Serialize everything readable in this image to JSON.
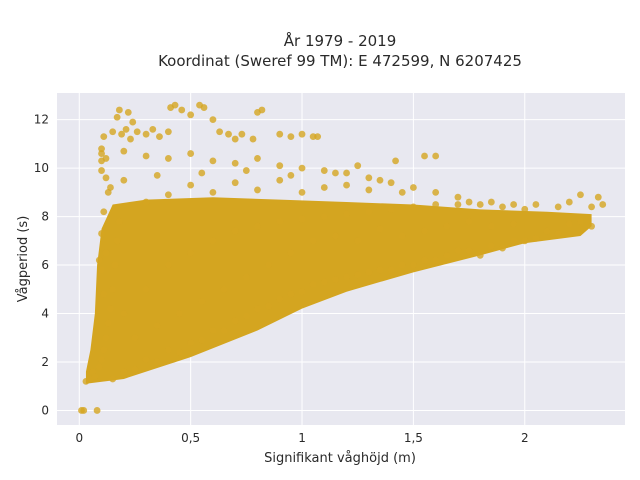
{
  "chart_data": {
    "type": "scatter",
    "title_line1": "År 1979 - 2019",
    "title_line2": "Koordinat (Sweref 99 TM): E 472599, N 6207425",
    "xlabel": "Signifikant våghöjd (m)",
    "ylabel": "Vågperiod (s)",
    "xlim": [
      -0.1,
      2.45
    ],
    "ylim": [
      -0.6,
      13.1
    ],
    "xticks": [
      {
        "value": 0,
        "label": "0"
      },
      {
        "value": 0.5,
        "label": "0,5"
      },
      {
        "value": 1,
        "label": "1"
      },
      {
        "value": 1.5,
        "label": "1,5"
      },
      {
        "value": 2,
        "label": "2"
      }
    ],
    "yticks": [
      {
        "value": 0,
        "label": "0"
      },
      {
        "value": 2,
        "label": "2"
      },
      {
        "value": 4,
        "label": "4"
      },
      {
        "value": 6,
        "label": "6"
      },
      {
        "value": 8,
        "label": "8"
      },
      {
        "value": 10,
        "label": "10"
      },
      {
        "value": 12,
        "label": "12"
      }
    ],
    "grid": true,
    "marker_color": "#D4A520",
    "plot_background": "#E8E8F0",
    "points": [
      [
        0.01,
        0.0
      ],
      [
        0.02,
        0.0
      ],
      [
        0.08,
        0.0
      ],
      [
        0.03,
        1.2
      ],
      [
        0.05,
        1.3
      ],
      [
        0.06,
        1.6
      ],
      [
        0.07,
        1.4
      ],
      [
        0.09,
        1.8
      ],
      [
        0.1,
        2.1
      ],
      [
        0.11,
        2.5
      ],
      [
        0.12,
        3.0
      ],
      [
        0.13,
        3.6
      ],
      [
        0.14,
        4.2
      ],
      [
        0.15,
        5.0
      ],
      [
        0.16,
        6.0
      ],
      [
        0.17,
        7.0
      ],
      [
        0.18,
        7.8
      ],
      [
        0.12,
        6.5
      ],
      [
        0.1,
        5.8
      ],
      [
        0.11,
        4.8
      ],
      [
        0.09,
        6.2
      ],
      [
        0.1,
        7.3
      ],
      [
        0.11,
        8.2
      ],
      [
        0.13,
        9.0
      ],
      [
        0.1,
        9.9
      ],
      [
        0.12,
        9.6
      ],
      [
        0.14,
        9.2
      ],
      [
        0.1,
        10.3
      ],
      [
        0.11,
        11.3
      ],
      [
        0.15,
        11.5
      ],
      [
        0.19,
        11.4
      ],
      [
        0.21,
        11.6
      ],
      [
        0.23,
        11.2
      ],
      [
        0.17,
        12.1
      ],
      [
        0.18,
        12.4
      ],
      [
        0.22,
        12.3
      ],
      [
        0.24,
        11.9
      ],
      [
        0.26,
        11.5
      ],
      [
        0.3,
        11.4
      ],
      [
        0.33,
        11.6
      ],
      [
        0.36,
        11.3
      ],
      [
        0.4,
        11.5
      ],
      [
        0.41,
        12.5
      ],
      [
        0.43,
        12.6
      ],
      [
        0.46,
        12.4
      ],
      [
        0.5,
        12.2
      ],
      [
        0.54,
        12.6
      ],
      [
        0.56,
        12.5
      ],
      [
        0.6,
        12.0
      ],
      [
        0.63,
        11.5
      ],
      [
        0.67,
        11.4
      ],
      [
        0.7,
        11.2
      ],
      [
        0.73,
        11.4
      ],
      [
        0.78,
        11.2
      ],
      [
        0.8,
        12.3
      ],
      [
        0.82,
        12.4
      ],
      [
        0.9,
        11.4
      ],
      [
        0.95,
        11.3
      ],
      [
        1.0,
        11.4
      ],
      [
        1.05,
        11.3
      ],
      [
        1.07,
        11.3
      ],
      [
        0.1,
        10.8
      ],
      [
        0.1,
        10.6
      ],
      [
        0.12,
        10.4
      ],
      [
        0.2,
        10.7
      ],
      [
        0.3,
        10.5
      ],
      [
        0.4,
        10.4
      ],
      [
        0.5,
        10.6
      ],
      [
        0.6,
        10.3
      ],
      [
        0.7,
        10.2
      ],
      [
        0.8,
        10.4
      ],
      [
        0.9,
        10.1
      ],
      [
        1.0,
        10.0
      ],
      [
        1.1,
        9.9
      ],
      [
        1.2,
        9.8
      ],
      [
        1.3,
        9.6
      ],
      [
        1.4,
        9.4
      ],
      [
        1.5,
        9.2
      ],
      [
        1.6,
        9.0
      ],
      [
        1.7,
        8.8
      ],
      [
        1.55,
        10.5
      ],
      [
        1.6,
        10.5
      ],
      [
        1.42,
        10.3
      ],
      [
        1.25,
        10.1
      ],
      [
        1.75,
        8.6
      ],
      [
        1.85,
        8.6
      ],
      [
        1.95,
        8.5
      ],
      [
        2.05,
        8.5
      ],
      [
        2.15,
        8.4
      ],
      [
        2.2,
        8.6
      ],
      [
        2.25,
        8.9
      ],
      [
        2.3,
        8.4
      ],
      [
        2.33,
        8.8
      ],
      [
        2.35,
        8.5
      ],
      [
        2.1,
        7.4
      ],
      [
        2.2,
        7.7
      ],
      [
        2.25,
        7.8
      ],
      [
        2.3,
        7.6
      ],
      [
        2.0,
        7.0
      ],
      [
        1.9,
        6.7
      ],
      [
        1.8,
        6.4
      ],
      [
        1.7,
        6.6
      ],
      [
        1.6,
        6.2
      ],
      [
        1.5,
        6.0
      ],
      [
        1.4,
        5.8
      ],
      [
        1.3,
        5.7
      ],
      [
        1.2,
        5.5
      ],
      [
        1.1,
        5.3
      ],
      [
        1.0,
        4.9
      ],
      [
        0.9,
        4.6
      ],
      [
        0.8,
        4.2
      ],
      [
        0.7,
        3.7
      ],
      [
        0.6,
        3.3
      ],
      [
        0.5,
        2.8
      ],
      [
        0.4,
        2.5
      ],
      [
        0.3,
        2.1
      ],
      [
        0.2,
        1.6
      ],
      [
        0.15,
        1.3
      ],
      [
        0.25,
        1.7
      ],
      [
        0.35,
        2.0
      ],
      [
        0.45,
        2.4
      ],
      [
        0.55,
        2.9
      ],
      [
        0.65,
        3.3
      ],
      [
        0.75,
        3.9
      ],
      [
        0.85,
        4.3
      ],
      [
        0.95,
        4.8
      ],
      [
        1.05,
        5.2
      ],
      [
        1.15,
        5.4
      ],
      [
        1.25,
        5.6
      ],
      [
        1.35,
        5.8
      ],
      [
        1.45,
        6.0
      ],
      [
        1.55,
        6.2
      ],
      [
        1.65,
        6.4
      ],
      [
        1.75,
        6.6
      ],
      [
        1.85,
        6.8
      ],
      [
        1.95,
        7.0
      ],
      [
        2.05,
        7.1
      ],
      [
        2.15,
        7.3
      ],
      [
        0.2,
        4.0
      ],
      [
        0.3,
        5.0
      ],
      [
        0.4,
        6.0
      ],
      [
        0.5,
        6.5
      ],
      [
        0.6,
        7.0
      ],
      [
        0.7,
        7.4
      ],
      [
        0.8,
        7.6
      ],
      [
        0.9,
        7.8
      ],
      [
        1.0,
        7.9
      ],
      [
        1.1,
        8.0
      ],
      [
        1.2,
        8.1
      ],
      [
        1.3,
        8.2
      ],
      [
        1.4,
        8.3
      ],
      [
        1.5,
        8.4
      ],
      [
        1.6,
        8.5
      ],
      [
        1.7,
        8.5
      ],
      [
        1.8,
        8.5
      ],
      [
        1.9,
        8.4
      ],
      [
        2.0,
        8.3
      ],
      [
        0.25,
        3.0
      ],
      [
        0.35,
        3.5
      ],
      [
        0.45,
        4.0
      ],
      [
        0.55,
        4.5
      ],
      [
        0.65,
        5.0
      ],
      [
        0.75,
        5.5
      ],
      [
        0.85,
        6.0
      ],
      [
        0.95,
        6.5
      ],
      [
        1.05,
        7.0
      ],
      [
        1.15,
        7.2
      ],
      [
        1.25,
        7.0
      ],
      [
        1.35,
        7.5
      ],
      [
        1.45,
        7.2
      ],
      [
        1.55,
        7.4
      ],
      [
        1.65,
        7.6
      ],
      [
        1.75,
        7.8
      ],
      [
        1.85,
        7.6
      ],
      [
        1.95,
        7.7
      ],
      [
        0.3,
        8.6
      ],
      [
        0.4,
        8.9
      ],
      [
        0.5,
        9.3
      ],
      [
        0.6,
        9.0
      ],
      [
        0.7,
        9.4
      ],
      [
        0.8,
        9.1
      ],
      [
        0.9,
        9.5
      ],
      [
        1.0,
        9.0
      ],
      [
        1.1,
        9.2
      ],
      [
        1.2,
        9.3
      ],
      [
        1.3,
        9.1
      ],
      [
        0.2,
        9.5
      ],
      [
        0.35,
        9.7
      ],
      [
        0.55,
        9.8
      ],
      [
        0.75,
        9.9
      ],
      [
        0.95,
        9.7
      ],
      [
        1.15,
        9.8
      ],
      [
        1.35,
        9.5
      ],
      [
        1.45,
        9.0
      ]
    ]
  }
}
